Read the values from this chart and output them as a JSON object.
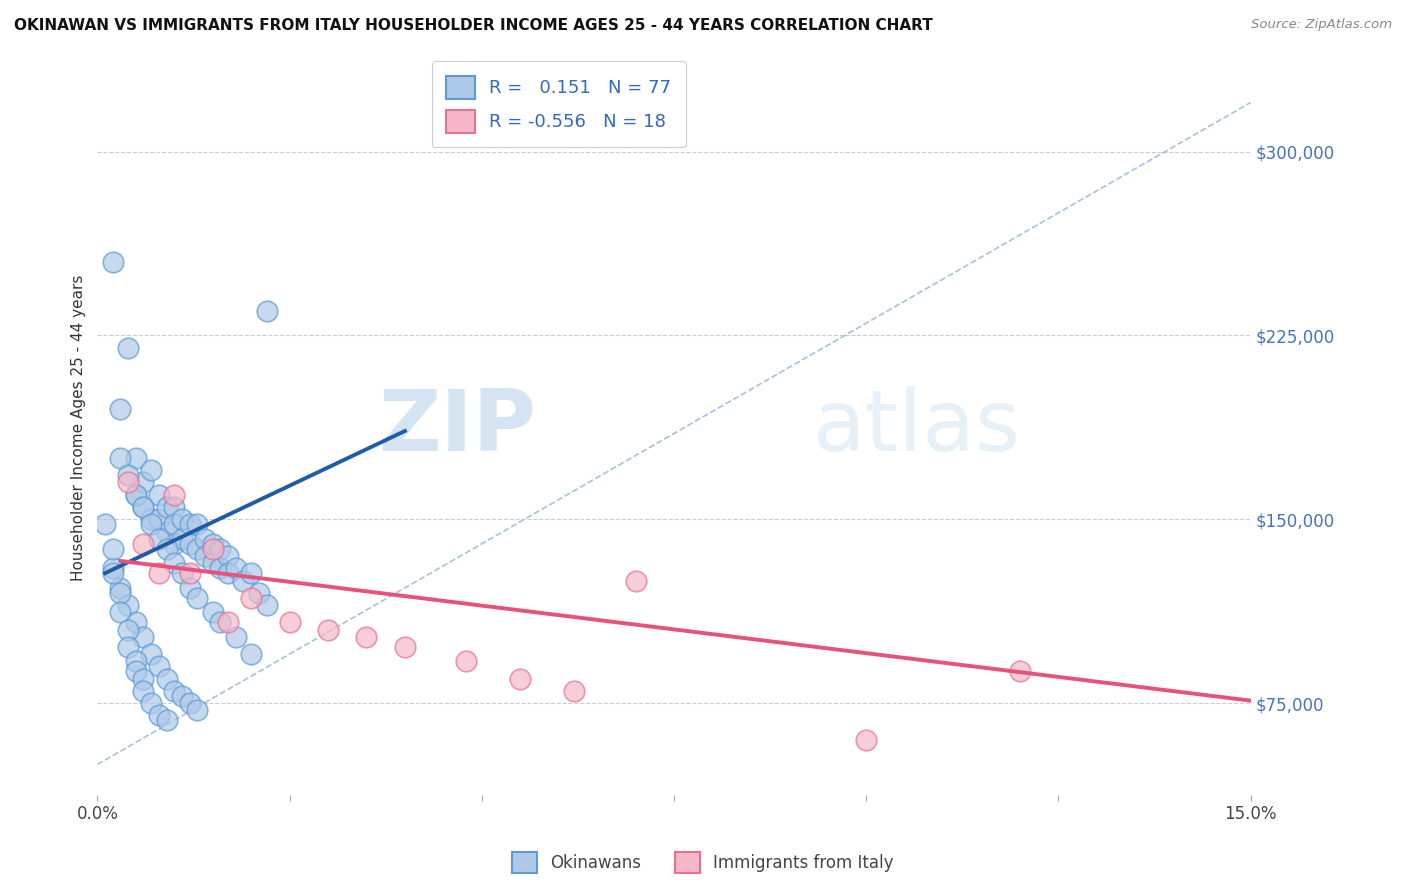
{
  "title": "OKINAWAN VS IMMIGRANTS FROM ITALY HOUSEHOLDER INCOME AGES 25 - 44 YEARS CORRELATION CHART",
  "source": "Source: ZipAtlas.com",
  "ylabel": "Householder Income Ages 25 - 44 years",
  "xlim": [
    0.0,
    0.15
  ],
  "ylim": [
    37500,
    337500
  ],
  "ytick_values": [
    75000,
    150000,
    225000,
    300000
  ],
  "ytick_labels": [
    "$75,000",
    "$150,000",
    "$225,000",
    "$300,000"
  ],
  "blue_color": "#aec9e8",
  "blue_edge": "#5b9bd5",
  "pink_color": "#f4b8c8",
  "pink_edge": "#e87090",
  "trend_blue": "#1f5ca8",
  "trend_pink": "#e8517a",
  "diag_color": "#99bbdd",
  "legend_label1": "R =   0.151   N = 77",
  "legend_label2": "R = -0.556   N = 18",
  "watermark_zip": "ZIP",
  "watermark_atlas": "atlas",
  "background_color": "#ffffff",
  "grid_color": "#cccccc",
  "okinawan_x": [
    0.002,
    0.003,
    0.004,
    0.005,
    0.005,
    0.006,
    0.006,
    0.007,
    0.007,
    0.008,
    0.008,
    0.009,
    0.009,
    0.01,
    0.01,
    0.01,
    0.011,
    0.011,
    0.012,
    0.012,
    0.013,
    0.013,
    0.014,
    0.014,
    0.015,
    0.015,
    0.016,
    0.016,
    0.017,
    0.017,
    0.018,
    0.019,
    0.02,
    0.021,
    0.022,
    0.003,
    0.004,
    0.005,
    0.006,
    0.007,
    0.008,
    0.009,
    0.01,
    0.011,
    0.012,
    0.013,
    0.015,
    0.016,
    0.018,
    0.02,
    0.002,
    0.003,
    0.004,
    0.005,
    0.006,
    0.007,
    0.008,
    0.009,
    0.01,
    0.011,
    0.012,
    0.013,
    0.001,
    0.002,
    0.002,
    0.003,
    0.003,
    0.004,
    0.004,
    0.005,
    0.005,
    0.006,
    0.006,
    0.007,
    0.008,
    0.009,
    0.022
  ],
  "okinawan_y": [
    255000,
    195000,
    220000,
    175000,
    160000,
    165000,
    155000,
    170000,
    150000,
    160000,
    150000,
    155000,
    145000,
    155000,
    148000,
    140000,
    150000,
    142000,
    148000,
    140000,
    148000,
    138000,
    142000,
    135000,
    140000,
    132000,
    138000,
    130000,
    135000,
    128000,
    130000,
    125000,
    128000,
    120000,
    115000,
    175000,
    168000,
    160000,
    155000,
    148000,
    142000,
    138000,
    132000,
    128000,
    122000,
    118000,
    112000,
    108000,
    102000,
    95000,
    130000,
    122000,
    115000,
    108000,
    102000,
    95000,
    90000,
    85000,
    80000,
    78000,
    75000,
    72000,
    148000,
    138000,
    128000,
    120000,
    112000,
    105000,
    98000,
    92000,
    88000,
    85000,
    80000,
    75000,
    70000,
    68000,
    235000
  ],
  "italy_x": [
    0.004,
    0.006,
    0.008,
    0.01,
    0.012,
    0.015,
    0.017,
    0.02,
    0.025,
    0.03,
    0.035,
    0.04,
    0.048,
    0.055,
    0.062,
    0.07,
    0.1,
    0.12
  ],
  "italy_y": [
    165000,
    140000,
    128000,
    160000,
    128000,
    138000,
    108000,
    118000,
    108000,
    105000,
    102000,
    98000,
    92000,
    85000,
    80000,
    125000,
    60000,
    88000
  ]
}
